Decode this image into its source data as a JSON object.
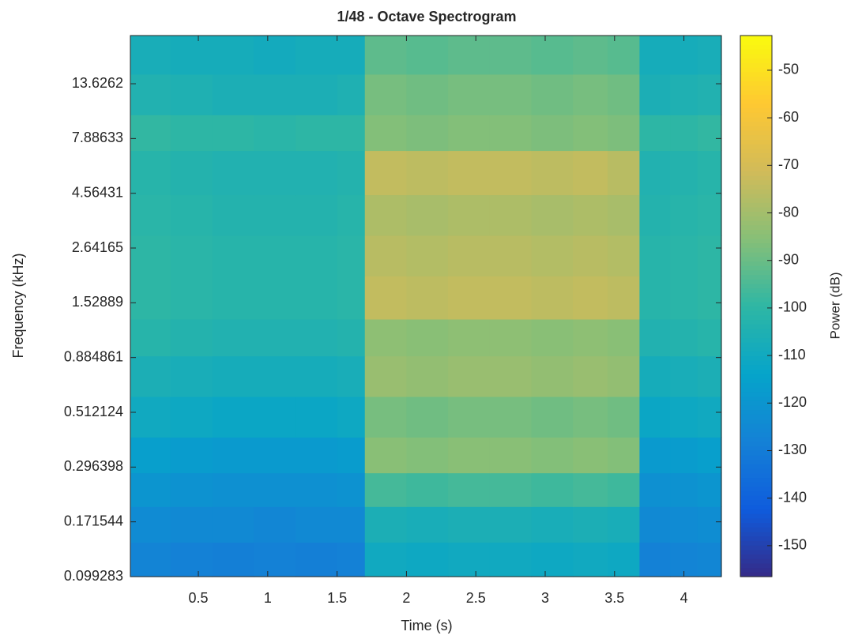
{
  "chart_data": {
    "type": "heatmap",
    "title": "1/48 - Octave Spectrogram",
    "xlabel": "Time (s)",
    "ylabel": "Frequency (kHz)",
    "colorbar_label": "Power (dB)",
    "colormap": "parula",
    "ylog": true,
    "xlim": [
      0.01,
      4.27
    ],
    "ylim": [
      0.099283,
      22.05
    ],
    "clim": [
      -156.5,
      -42.7
    ],
    "xticks": [
      0.5,
      1,
      1.5,
      2,
      2.5,
      3,
      3.5,
      4
    ],
    "yticks": [
      0.099283,
      0.171544,
      0.296398,
      0.512124,
      0.884861,
      1.52889,
      2.64165,
      4.56431,
      7.88633,
      13.6262
    ],
    "cticks": [
      -150,
      -140,
      -130,
      -120,
      -110,
      -100,
      -90,
      -80,
      -70,
      -60,
      -50
    ],
    "time_edges": [
      0.01,
      0.3,
      0.6,
      0.9,
      1.2,
      1.5,
      1.7,
      2.0,
      2.3,
      2.6,
      2.9,
      3.2,
      3.45,
      3.68,
      3.9,
      4.1,
      4.27
    ],
    "freq_edges": [
      0.099283,
      0.14,
      0.2,
      0.28,
      0.4,
      0.6,
      0.9,
      1.3,
      2,
      3,
      4.5,
      7,
      10,
      15,
      22.05
    ],
    "z": [
      [
        -127,
        -128,
        -129,
        -128,
        -129,
        -128,
        -110,
        -111,
        -110,
        -110,
        -111,
        -110,
        -111,
        -128,
        -127,
        -126
      ],
      [
        -124,
        -125,
        -125,
        -126,
        -125,
        -125,
        -106,
        -107,
        -106,
        -106,
        -107,
        -106,
        -107,
        -125,
        -124,
        -123
      ],
      [
        -120,
        -121,
        -122,
        -122,
        -122,
        -121,
        -96,
        -97,
        -96,
        -96,
        -97,
        -96,
        -97,
        -122,
        -121,
        -120
      ],
      [
        -116,
        -117,
        -118,
        -118,
        -118,
        -117,
        -85,
        -86,
        -85,
        -85,
        -86,
        -85,
        -86,
        -118,
        -117,
        -116
      ],
      [
        -110,
        -111,
        -112,
        -112,
        -112,
        -111,
        -88,
        -89,
        -88,
        -88,
        -89,
        -88,
        -89,
        -112,
        -111,
        -110
      ],
      [
        -106,
        -107,
        -108,
        -108,
        -108,
        -107,
        -82,
        -83,
        -82,
        -82,
        -83,
        -82,
        -83,
        -108,
        -107,
        -106
      ],
      [
        -102,
        -103,
        -104,
        -104,
        -104,
        -103,
        -84,
        -85,
        -84,
        -84,
        -85,
        -84,
        -85,
        -104,
        -103,
        -102
      ],
      [
        -100,
        -101,
        -102,
        -102,
        -102,
        -101,
        -74,
        -75,
        -74,
        -74,
        -75,
        -74,
        -75,
        -102,
        -101,
        -100
      ],
      [
        -100,
        -101,
        -102,
        -102,
        -102,
        -101,
        -76,
        -77,
        -76,
        -76,
        -77,
        -76,
        -77,
        -102,
        -101,
        -100
      ],
      [
        -101,
        -102,
        -103,
        -103,
        -103,
        -102,
        -78,
        -79,
        -78,
        -78,
        -79,
        -78,
        -79,
        -103,
        -102,
        -101
      ],
      [
        -102,
        -103,
        -104,
        -104,
        -104,
        -103,
        -74,
        -75,
        -74,
        -74,
        -75,
        -74,
        -76,
        -104,
        -103,
        -102
      ],
      [
        -99,
        -100,
        -100,
        -101,
        -100,
        -100,
        -86,
        -87,
        -86,
        -86,
        -87,
        -86,
        -87,
        -100,
        -100,
        -99
      ],
      [
        -104,
        -105,
        -106,
        -106,
        -106,
        -105,
        -88,
        -89,
        -88,
        -88,
        -89,
        -88,
        -89,
        -106,
        -105,
        -104
      ],
      [
        -107,
        -108,
        -108,
        -109,
        -108,
        -108,
        -92,
        -93,
        -92,
        -92,
        -93,
        -92,
        -93,
        -108,
        -108,
        -107
      ]
    ]
  }
}
